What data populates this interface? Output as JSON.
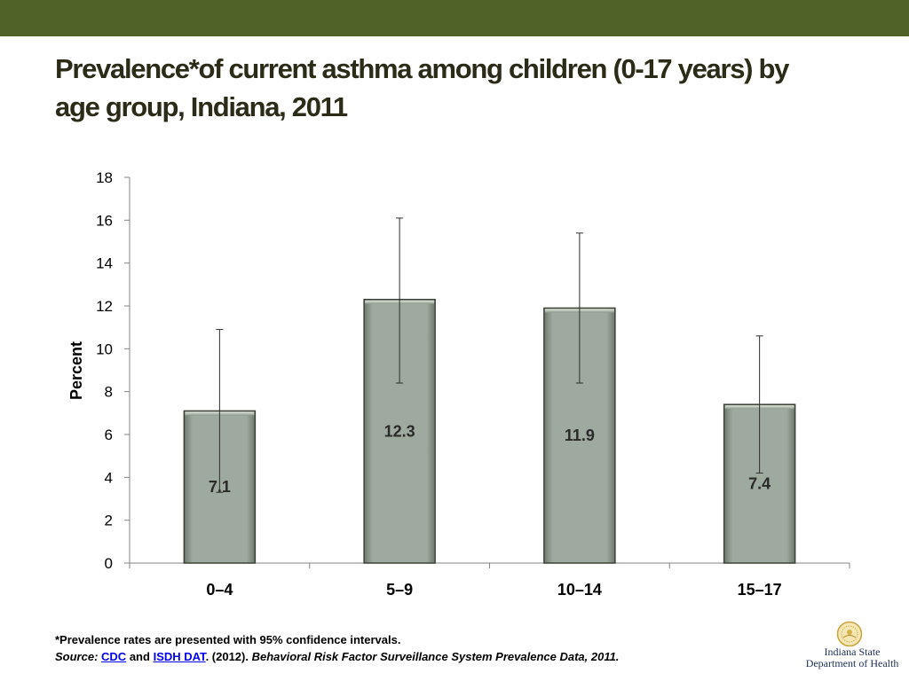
{
  "header": {
    "title_line1": "Prevalence*of current asthma among children (0-17 years) by",
    "title_line2": "age group, Indiana, 2011"
  },
  "colors": {
    "top_bar": "#4f6228",
    "bar_fill": "#9ea99f",
    "bar_stroke": "#3c4236",
    "title": "#2b2b17"
  },
  "chart_data": {
    "type": "bar",
    "title": "Prevalence*of current asthma among children (0-17 years) by age group, Indiana, 2011",
    "xlabel": "",
    "ylabel": "Percent",
    "ylim": [
      0,
      18
    ],
    "yticks": [
      0,
      2,
      4,
      6,
      8,
      10,
      12,
      14,
      16,
      18
    ],
    "categories": [
      "0–4",
      "5–9",
      "10–14",
      "15–17"
    ],
    "values": [
      7.1,
      12.3,
      11.9,
      7.4
    ],
    "data_labels": [
      "7.1",
      "12.3",
      "11.9",
      "7.4"
    ],
    "error_bars": [
      {
        "low": 3.3,
        "high": 10.9
      },
      {
        "low": 8.4,
        "high": 16.1
      },
      {
        "low": 8.4,
        "high": 15.4
      },
      {
        "low": 4.2,
        "high": 10.6
      }
    ],
    "grid": false,
    "legend": "none"
  },
  "footnote": {
    "line1": "*Prevalence rates are presented with 95% confidence intervals.",
    "source_label": "Source:",
    "link_cdc": "CDC",
    "and_text": "and",
    "link_isdh": "ISDH DAT",
    "year_text": ". (2012).",
    "publication": "Behavioral Risk Factor Surveillance System Prevalence Data, 2011."
  },
  "logo": {
    "line1": "Indiana State",
    "line2": "Department of Health"
  }
}
